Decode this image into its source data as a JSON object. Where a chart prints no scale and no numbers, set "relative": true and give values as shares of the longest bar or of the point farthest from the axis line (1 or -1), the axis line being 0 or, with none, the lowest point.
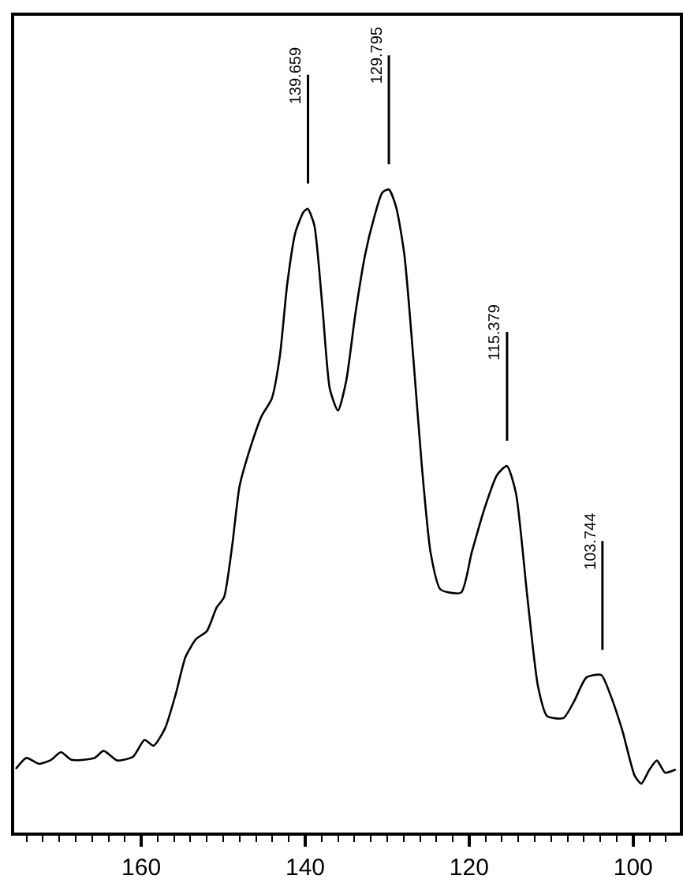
{
  "chart_data": {
    "type": "line",
    "relative": true,
    "color": "#000000",
    "x": [
      175.3,
      174,
      172.5,
      171,
      169.8,
      168.5,
      165.7,
      164.6,
      162.9,
      161,
      159.6,
      158.5,
      157.1,
      155.8,
      154.6,
      153.3,
      152,
      150.8,
      149.9,
      148.9,
      148,
      146.6,
      145.3,
      144.1,
      143.1,
      142.2,
      141.2,
      140.2,
      139.7,
      138.9,
      137.9,
      137,
      136,
      135,
      133.9,
      132.7,
      131.6,
      130.6,
      129.8,
      128.9,
      127.9,
      126.8,
      125.8,
      124.7,
      123.5,
      121,
      119.7,
      118.1,
      116.6,
      115.4,
      114.3,
      112.9,
      111.6,
      110.5,
      108.5,
      107.2,
      105.7,
      103.9,
      102.8,
      101.3,
      99.8,
      99,
      98,
      97.1,
      96.1,
      94.8
    ],
    "values": [
      0.099,
      0.116,
      0.107,
      0.113,
      0.125,
      0.113,
      0.116,
      0.127,
      0.112,
      0.118,
      0.144,
      0.135,
      0.162,
      0.215,
      0.273,
      0.301,
      0.313,
      0.35,
      0.366,
      0.447,
      0.539,
      0.602,
      0.648,
      0.674,
      0.74,
      0.852,
      0.933,
      0.965,
      0.97,
      0.945,
      0.817,
      0.69,
      0.656,
      0.702,
      0.805,
      0.898,
      0.956,
      0.995,
      1,
      0.972,
      0.898,
      0.736,
      0.574,
      0.435,
      0.378,
      0.373,
      0.435,
      0.505,
      0.556,
      0.57,
      0.528,
      0.366,
      0.227,
      0.181,
      0.178,
      0.204,
      0.241,
      0.245,
      0.215,
      0.158,
      0.088,
      0.076,
      0.098,
      0.112,
      0.093,
      0.098
    ],
    "xlim": [
      175.5,
      94.3
    ],
    "xticks": [
      {
        "value": 174,
        "label": null
      },
      {
        "value": 172,
        "label": null
      },
      {
        "value": 170,
        "label": null
      },
      {
        "value": 168,
        "label": null
      },
      {
        "value": 166,
        "label": null
      },
      {
        "value": 164,
        "label": null
      },
      {
        "value": 162,
        "label": null
      },
      160,
      {
        "value": 158,
        "label": null
      },
      {
        "value": 156,
        "label": null
      },
      {
        "value": 154,
        "label": null
      },
      {
        "value": 152,
        "label": null
      },
      {
        "value": 150,
        "label": null
      },
      {
        "value": 148,
        "label": null
      },
      {
        "value": 146,
        "label": null
      },
      {
        "value": 144,
        "label": null
      },
      {
        "value": 142,
        "label": null
      },
      140,
      {
        "value": 138,
        "label": null
      },
      {
        "value": 136,
        "label": null
      },
      {
        "value": 134,
        "label": null
      },
      {
        "value": 132,
        "label": null
      },
      {
        "value": 130,
        "label": null
      },
      {
        "value": 128,
        "label": null
      },
      {
        "value": 126,
        "label": null
      },
      {
        "value": 124,
        "label": null
      },
      {
        "value": 122,
        "label": null
      },
      120,
      {
        "value": 118,
        "label": null
      },
      {
        "value": 116,
        "label": null
      },
      {
        "value": 114,
        "label": null
      },
      {
        "value": 112,
        "label": null
      },
      {
        "value": 110,
        "label": null
      },
      {
        "value": 108,
        "label": null
      },
      {
        "value": 106,
        "label": null
      },
      {
        "value": 104,
        "label": null
      },
      {
        "value": 102,
        "label": null
      },
      100,
      {
        "value": 98,
        "label": null
      },
      {
        "value": 96,
        "label": null
      }
    ],
    "annotations": [
      {
        "text": "139.659",
        "x": 139.659,
        "y": 0.97
      },
      {
        "text": "129.795",
        "x": 129.795,
        "y": 1
      },
      {
        "text": "115.379",
        "x": 115.379,
        "y": 0.57
      },
      {
        "text": "103.744",
        "x": 103.744,
        "y": 0.245
      }
    ],
    "legend": false,
    "marker": "none",
    "line_style": "solid"
  }
}
